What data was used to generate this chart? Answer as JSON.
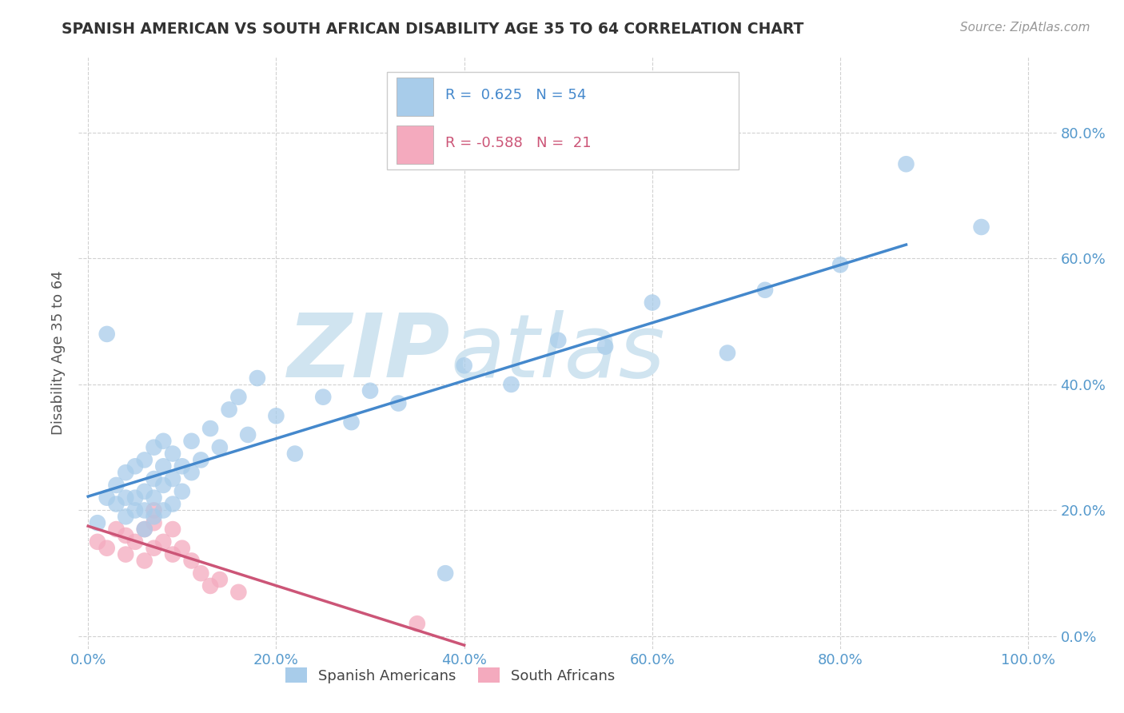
{
  "title": "SPANISH AMERICAN VS SOUTH AFRICAN DISABILITY AGE 35 TO 64 CORRELATION CHART",
  "source": "Source: ZipAtlas.com",
  "ylabel_label": "Disability Age 35 to 64",
  "xlim": [
    -0.01,
    1.03
  ],
  "ylim": [
    -0.02,
    0.92
  ],
  "xticks": [
    0.0,
    0.2,
    0.4,
    0.6,
    0.8,
    1.0
  ],
  "xtick_labels": [
    "0.0%",
    "20.0%",
    "40.0%",
    "60.0%",
    "80.0%",
    "100.0%"
  ],
  "yticks": [
    0.0,
    0.2,
    0.4,
    0.6,
    0.8
  ],
  "ytick_labels": [
    "0.0%",
    "20.0%",
    "40.0%",
    "60.0%",
    "80.0%"
  ],
  "blue_R": 0.625,
  "blue_N": 54,
  "pink_R": -0.588,
  "pink_N": 21,
  "blue_color": "#A8CCEA",
  "pink_color": "#F4AABE",
  "blue_line_color": "#4488CC",
  "pink_line_color": "#CC5577",
  "watermark_color": "#D0E4F0",
  "legend_label_blue": "Spanish Americans",
  "legend_label_pink": "South Africans",
  "tick_color": "#5599CC",
  "blue_x": [
    0.01,
    0.02,
    0.02,
    0.03,
    0.03,
    0.04,
    0.04,
    0.04,
    0.05,
    0.05,
    0.05,
    0.06,
    0.06,
    0.06,
    0.06,
    0.07,
    0.07,
    0.07,
    0.07,
    0.08,
    0.08,
    0.08,
    0.08,
    0.09,
    0.09,
    0.09,
    0.1,
    0.1,
    0.11,
    0.11,
    0.12,
    0.13,
    0.14,
    0.15,
    0.16,
    0.17,
    0.18,
    0.2,
    0.22,
    0.25,
    0.28,
    0.3,
    0.33,
    0.38,
    0.4,
    0.45,
    0.5,
    0.55,
    0.6,
    0.68,
    0.72,
    0.8,
    0.87,
    0.95
  ],
  "blue_y": [
    0.18,
    0.48,
    0.22,
    0.21,
    0.24,
    0.19,
    0.22,
    0.26,
    0.2,
    0.22,
    0.27,
    0.17,
    0.2,
    0.23,
    0.28,
    0.19,
    0.22,
    0.25,
    0.3,
    0.2,
    0.24,
    0.27,
    0.31,
    0.21,
    0.25,
    0.29,
    0.23,
    0.27,
    0.26,
    0.31,
    0.28,
    0.33,
    0.3,
    0.36,
    0.38,
    0.32,
    0.41,
    0.35,
    0.29,
    0.38,
    0.34,
    0.39,
    0.37,
    0.1,
    0.43,
    0.4,
    0.47,
    0.46,
    0.53,
    0.45,
    0.55,
    0.59,
    0.75,
    0.65
  ],
  "pink_x": [
    0.01,
    0.02,
    0.03,
    0.04,
    0.04,
    0.05,
    0.06,
    0.06,
    0.07,
    0.07,
    0.07,
    0.08,
    0.09,
    0.09,
    0.1,
    0.11,
    0.12,
    0.13,
    0.14,
    0.16,
    0.35
  ],
  "pink_y": [
    0.15,
    0.14,
    0.17,
    0.13,
    0.16,
    0.15,
    0.12,
    0.17,
    0.14,
    0.18,
    0.2,
    0.15,
    0.13,
    0.17,
    0.14,
    0.12,
    0.1,
    0.08,
    0.09,
    0.07,
    0.02
  ],
  "blue_trend_x": [
    0.0,
    0.87
  ],
  "pink_trend_x": [
    0.0,
    0.4
  ]
}
